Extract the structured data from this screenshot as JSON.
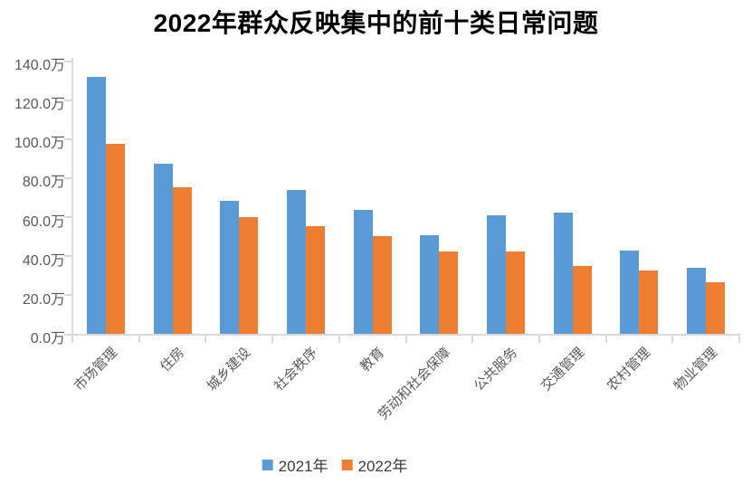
{
  "title": "2022年群众反映集中的前十类日常问题",
  "chart_data": {
    "type": "bar",
    "title": "2022年群众反映集中的前十类日常问题",
    "unit": "万",
    "categories": [
      "市场管理",
      "住房",
      "城乡建设",
      "社会秩序",
      "教育",
      "劳动和社会保障",
      "公共服务",
      "交通管理",
      "农村管理",
      "物业管理"
    ],
    "series": [
      {
        "name": "2021年",
        "color": "#5B9BD5",
        "values": [
          131.5,
          87.0,
          68.0,
          73.5,
          63.5,
          50.5,
          60.5,
          62.0,
          42.5,
          34.0
        ]
      },
      {
        "name": "2022年",
        "color": "#ED7D31",
        "values": [
          97.5,
          75.0,
          60.0,
          55.0,
          50.0,
          42.0,
          42.0,
          35.0,
          32.5,
          26.5
        ]
      }
    ],
    "y_axis": {
      "min": 0,
      "max": 140,
      "step": 20,
      "tick_labels": [
        "0.0万",
        "20.0万",
        "40.0万",
        "60.0万",
        "80.0万",
        "100.0万",
        "120.0万",
        "140.0万"
      ]
    },
    "gridlines": false,
    "legend_position": "bottom",
    "legend": [
      {
        "label": "2021年",
        "color": "#5B9BD5"
      },
      {
        "label": "2022年",
        "color": "#ED7D31"
      }
    ],
    "colors": {
      "axis_line": "#D9D9D9",
      "axis_text": "#595959",
      "title_text": "#000000",
      "background": "#FFFFFF"
    }
  }
}
